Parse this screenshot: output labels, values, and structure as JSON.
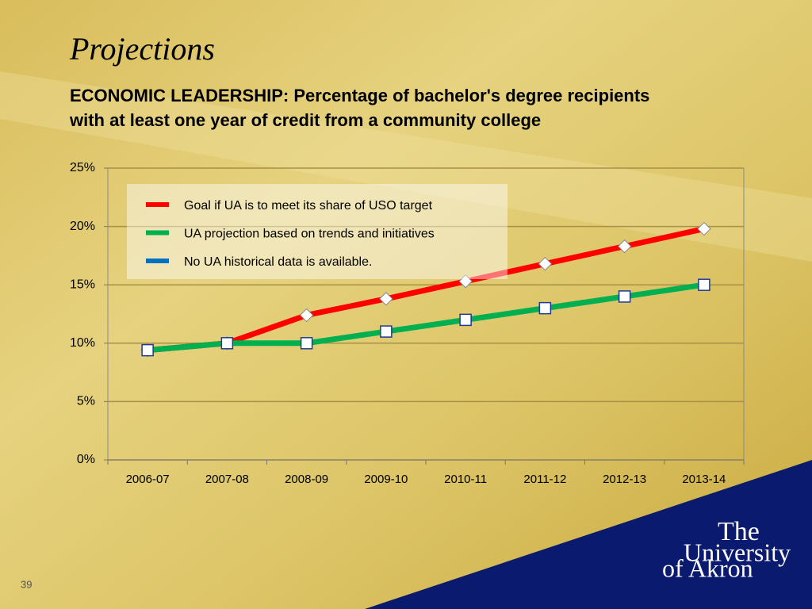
{
  "slide_title": "Projections",
  "chart_data": {
    "type": "line",
    "title": "ECONOMIC LEADERSHIP: Percentage of bachelor's degree recipients with at least one year of credit from a community college",
    "title_lines": [
      "ECONOMIC LEADERSHIP: Percentage of bachelor's degree recipients",
      "with at least one year of credit from a community college"
    ],
    "categories": [
      "2006-07",
      "2007-08",
      "2008-09",
      "2009-10",
      "2010-11",
      "2011-12",
      "2012-13",
      "2013-14"
    ],
    "series": [
      {
        "name": "Goal if UA is to meet its share of USO target",
        "color": "#ff0000",
        "marker": "diamond",
        "values": [
          9.4,
          10,
          12.4,
          13.8,
          15.3,
          16.8,
          18.3,
          19.8
        ]
      },
      {
        "name": "UA projection based on trends and initiatives",
        "color": "#00b050",
        "marker": "square",
        "values": [
          9.4,
          10,
          10,
          11,
          12,
          13,
          14,
          15
        ]
      },
      {
        "name": "No UA historical data is available.",
        "color": "#0070c0",
        "marker": "square",
        "values": [
          null,
          null,
          null,
          null,
          null,
          null,
          null,
          null
        ]
      }
    ],
    "ylim": [
      0,
      25
    ],
    "yticks": [
      {
        "value": 0,
        "label": "0%"
      },
      {
        "value": 5,
        "label": "5%"
      },
      {
        "value": 10,
        "label": "10%"
      },
      {
        "value": 15,
        "label": "15%"
      },
      {
        "value": 20,
        "label": "20%"
      },
      {
        "value": 25,
        "label": "25%"
      }
    ],
    "grid": true,
    "legend": "upper-left"
  },
  "logo": {
    "line1": "The",
    "line2": "University",
    "line3": "of Akron"
  },
  "page_number": "39"
}
